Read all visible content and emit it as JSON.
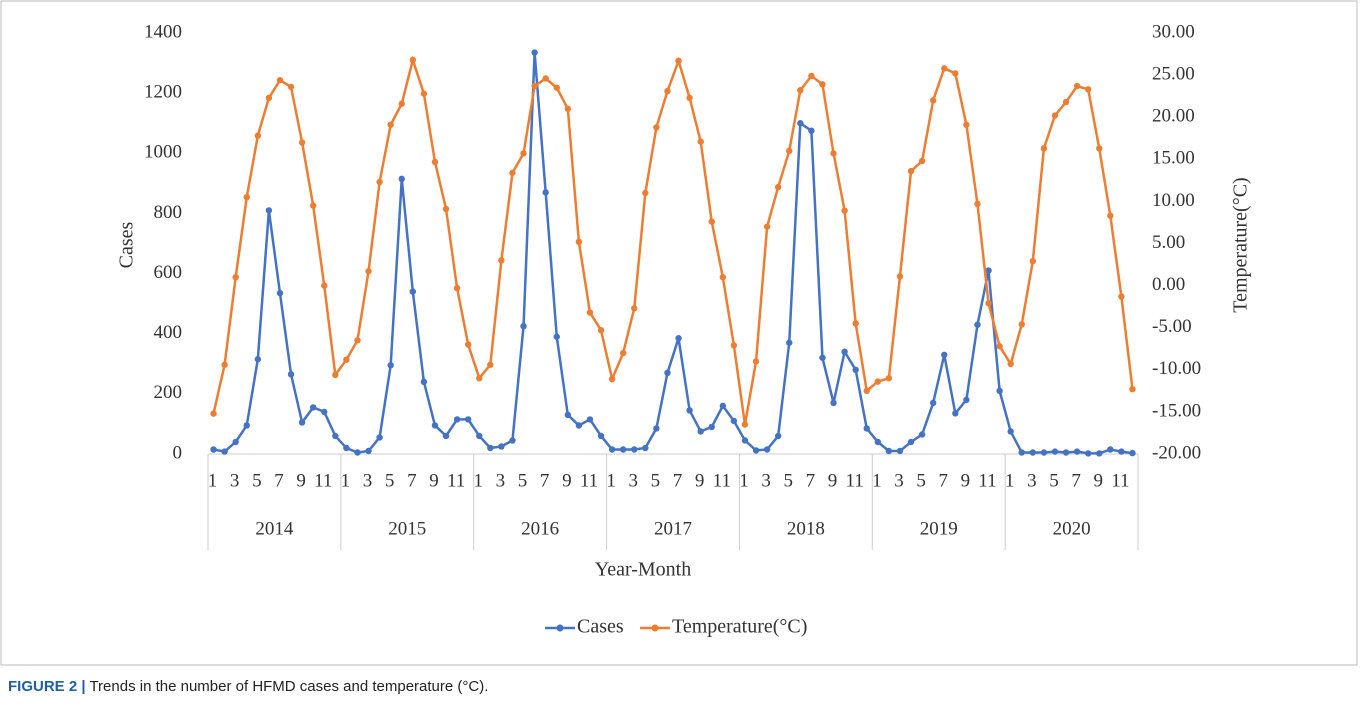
{
  "chart_data": {
    "type": "line",
    "x_label": "Year-Month",
    "y_label": "Cases",
    "y2_label": "Temperature(°C)",
    "years": [
      "2014",
      "2015",
      "2016",
      "2017",
      "2018",
      "2019",
      "2020"
    ],
    "categories": [
      "1",
      null,
      "3",
      null,
      "5",
      null,
      "7",
      null,
      "9",
      null,
      "11",
      null,
      "1",
      null,
      "3",
      null,
      "5",
      null,
      "7",
      null,
      "9",
      null,
      "11",
      null,
      "1",
      null,
      "3",
      null,
      "5",
      null,
      "7",
      null,
      "9",
      null,
      "11",
      null,
      "1",
      null,
      "3",
      null,
      "5",
      null,
      "7",
      null,
      "9",
      null,
      "11",
      null,
      "1",
      null,
      "3",
      null,
      "5",
      null,
      "7",
      null,
      "9",
      null,
      "11",
      null,
      "1",
      null,
      "3",
      null,
      "5",
      null,
      "7",
      null,
      "9",
      null,
      "11",
      null,
      "1",
      null,
      "3",
      null,
      "5",
      null,
      "7",
      null,
      "9",
      null,
      "11",
      null
    ],
    "series": [
      {
        "name": "Cases",
        "color": "#4472c4",
        "axis": "y",
        "values": [
          15,
          8,
          40,
          95,
          315,
          810,
          535,
          265,
          105,
          155,
          140,
          60,
          20,
          5,
          10,
          55,
          295,
          915,
          540,
          240,
          95,
          60,
          115,
          115,
          60,
          20,
          25,
          45,
          425,
          1335,
          870,
          390,
          130,
          95,
          115,
          60,
          15,
          15,
          15,
          20,
          85,
          270,
          385,
          145,
          75,
          90,
          160,
          110,
          45,
          12,
          15,
          60,
          370,
          1100,
          1075,
          320,
          170,
          340,
          280,
          85,
          40,
          10,
          10,
          40,
          65,
          170,
          330,
          135,
          180,
          430,
          610,
          210,
          75,
          5,
          5,
          5,
          8,
          5,
          8,
          2,
          2,
          15,
          8,
          3
        ]
      },
      {
        "name": "Temperature(°C)",
        "color": "#ed7d31",
        "axis": "y2",
        "values": [
          -15.2,
          -9.4,
          1.0,
          10.5,
          17.8,
          22.3,
          24.4,
          23.6,
          17.0,
          9.5,
          0.0,
          -10.6,
          -8.8,
          -6.5,
          1.7,
          12.3,
          19.1,
          21.6,
          26.8,
          22.8,
          14.7,
          9.1,
          -0.3,
          -7.0,
          -11.0,
          -9.4,
          3.0,
          13.4,
          15.7,
          23.7,
          24.6,
          23.5,
          21.0,
          5.2,
          -3.2,
          -5.3,
          -11.1,
          -8.0,
          -2.7,
          11.0,
          18.8,
          23.1,
          26.7,
          22.3,
          17.1,
          7.6,
          1.0,
          -7.1,
          -16.5,
          -9.0,
          7.0,
          11.7,
          16.0,
          23.2,
          24.9,
          23.9,
          15.7,
          8.9,
          -4.5,
          -12.5,
          -11.4,
          -11.0,
          1.1,
          13.6,
          14.8,
          22.0,
          25.8,
          25.2,
          19.1,
          9.7,
          -2.1,
          -7.2,
          -9.3,
          -4.6,
          2.9,
          16.3,
          20.2,
          21.8,
          23.7,
          23.3,
          16.3,
          8.3,
          -1.3,
          -12.3
        ]
      }
    ],
    "ylim": [
      0,
      1400
    ],
    "yticks": [
      0,
      200,
      400,
      600,
      800,
      1000,
      1200,
      1400
    ],
    "y2lim": [
      -20,
      30
    ],
    "y2ticks": [
      {
        "value": -20,
        "label": "-20.00"
      },
      {
        "value": -15,
        "label": "-15.00"
      },
      {
        "value": -10,
        "label": "-10.00"
      },
      {
        "value": -5,
        "label": "-5.00"
      },
      {
        "value": 0,
        "label": "0.00"
      },
      {
        "value": 5,
        "label": "5.00"
      },
      {
        "value": 10,
        "label": "10.00"
      },
      {
        "value": 15,
        "label": "15.00"
      },
      {
        "value": 20,
        "label": "20.00"
      },
      {
        "value": 25,
        "label": "25.00"
      },
      {
        "value": 30,
        "label": "30.00"
      }
    ],
    "legend": "bottom"
  },
  "caption_label": "FIGURE 2 |",
  "caption_text": "Trends in the number of HFMD cases and temperature (°C)."
}
